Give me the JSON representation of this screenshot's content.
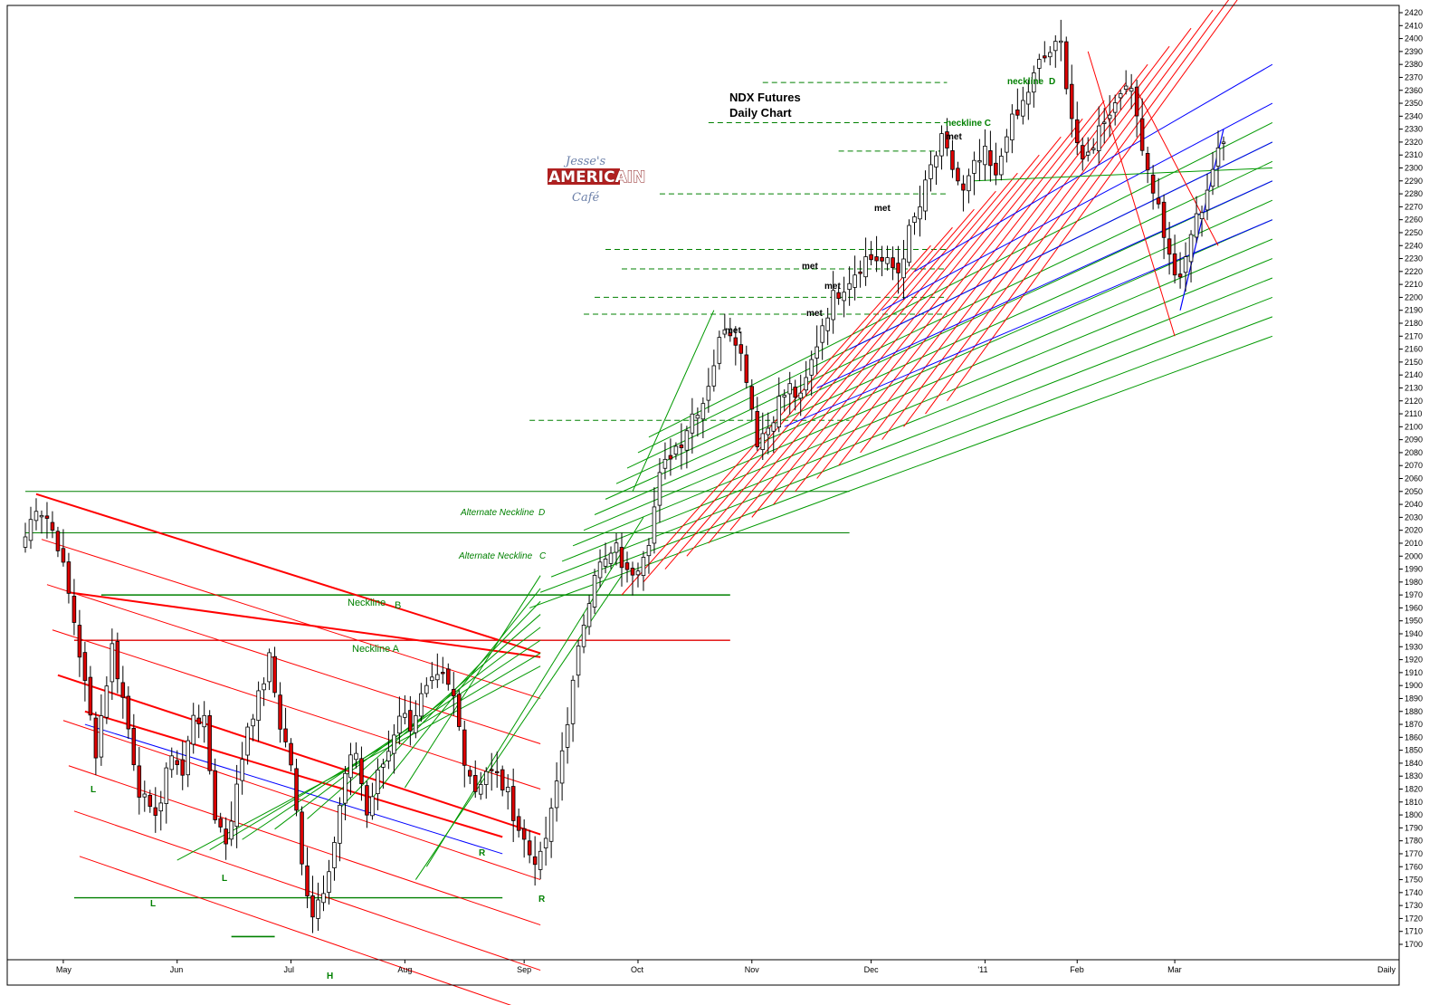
{
  "chart_data": {
    "type": "candlestick",
    "title": "NDX  Futures",
    "subtitle": "Daily Chart",
    "period_label": "Daily",
    "ylim": [
      1690,
      2425
    ],
    "y_ticks": [
      1700,
      1710,
      1720,
      1730,
      1740,
      1750,
      1760,
      1770,
      1780,
      1790,
      1800,
      1810,
      1820,
      1830,
      1840,
      1850,
      1860,
      1870,
      1880,
      1890,
      1900,
      1910,
      1920,
      1930,
      1940,
      1950,
      1960,
      1970,
      1980,
      1990,
      2000,
      2010,
      2020,
      2030,
      2040,
      2050,
      2060,
      2070,
      2080,
      2090,
      2100,
      2110,
      2120,
      2130,
      2140,
      2150,
      2160,
      2170,
      2180,
      2190,
      2200,
      2210,
      2220,
      2230,
      2240,
      2250,
      2260,
      2270,
      2280,
      2290,
      2300,
      2310,
      2320,
      2330,
      2340,
      2350,
      2360,
      2370,
      2380,
      2390,
      2400,
      2410,
      2420
    ],
    "x_range": [
      0,
      231
    ],
    "months": [
      {
        "label": "May",
        "index": 7
      },
      {
        "label": "Jun",
        "index": 28
      },
      {
        "label": "Jul",
        "index": 49
      },
      {
        "label": "Aug",
        "index": 70
      },
      {
        "label": "Sep",
        "index": 92
      },
      {
        "label": "Oct",
        "index": 113
      },
      {
        "label": "Nov",
        "index": 134
      },
      {
        "label": "Dec",
        "index": 156
      },
      {
        "label": "'11",
        "index": 177
      },
      {
        "label": "Feb",
        "index": 194
      },
      {
        "label": "Mar",
        "index": 212
      }
    ],
    "anchors": [
      [
        0,
        2015
      ],
      [
        2,
        2040
      ],
      [
        4,
        2030
      ],
      [
        6,
        2010
      ],
      [
        9,
        1950
      ],
      [
        11,
        1900
      ],
      [
        13,
        1850
      ],
      [
        16,
        1930
      ],
      [
        18,
        1890
      ],
      [
        21,
        1820
      ],
      [
        23,
        1800
      ],
      [
        25,
        1810
      ],
      [
        27,
        1850
      ],
      [
        29,
        1830
      ],
      [
        31,
        1880
      ],
      [
        33,
        1870
      ],
      [
        35,
        1800
      ],
      [
        37,
        1780
      ],
      [
        39,
        1820
      ],
      [
        41,
        1870
      ],
      [
        43,
        1890
      ],
      [
        45,
        1920
      ],
      [
        47,
        1870
      ],
      [
        49,
        1840
      ],
      [
        51,
        1760
      ],
      [
        53,
        1725
      ],
      [
        55,
        1745
      ],
      [
        57,
        1780
      ],
      [
        59,
        1830
      ],
      [
        61,
        1850
      ],
      [
        63,
        1800
      ],
      [
        65,
        1830
      ],
      [
        67,
        1850
      ],
      [
        69,
        1880
      ],
      [
        71,
        1870
      ],
      [
        73,
        1890
      ],
      [
        75,
        1900
      ],
      [
        77,
        1905
      ],
      [
        79,
        1890
      ],
      [
        81,
        1845
      ],
      [
        83,
        1820
      ],
      [
        85,
        1835
      ],
      [
        87,
        1830
      ],
      [
        89,
        1815
      ],
      [
        91,
        1790
      ],
      [
        93,
        1770
      ],
      [
        95,
        1765
      ],
      [
        97,
        1800
      ],
      [
        99,
        1850
      ],
      [
        101,
        1900
      ],
      [
        103,
        1950
      ],
      [
        105,
        1990
      ],
      [
        107,
        1995
      ],
      [
        109,
        2005
      ],
      [
        111,
        1985
      ],
      [
        113,
        1995
      ],
      [
        115,
        2015
      ],
      [
        117,
        2060
      ],
      [
        119,
        2080
      ],
      [
        121,
        2090
      ],
      [
        123,
        2110
      ],
      [
        125,
        2120
      ],
      [
        127,
        2150
      ],
      [
        129,
        2180
      ],
      [
        131,
        2170
      ],
      [
        133,
        2140
      ],
      [
        135,
        2090
      ],
      [
        137,
        2100
      ],
      [
        139,
        2120
      ],
      [
        141,
        2130
      ],
      [
        143,
        2120
      ],
      [
        145,
        2150
      ],
      [
        147,
        2180
      ],
      [
        149,
        2200
      ],
      [
        151,
        2210
      ],
      [
        153,
        2220
      ],
      [
        155,
        2230
      ],
      [
        157,
        2230
      ],
      [
        159,
        2225
      ],
      [
        161,
        2220
      ],
      [
        163,
        2250
      ],
      [
        165,
        2270
      ],
      [
        167,
        2300
      ],
      [
        169,
        2320
      ],
      [
        171,
        2300
      ],
      [
        173,
        2280
      ],
      [
        175,
        2300
      ],
      [
        177,
        2310
      ],
      [
        179,
        2290
      ],
      [
        181,
        2330
      ],
      [
        183,
        2340
      ],
      [
        185,
        2360
      ],
      [
        187,
        2380
      ],
      [
        189,
        2390
      ],
      [
        191,
        2395
      ],
      [
        193,
        2340
      ],
      [
        195,
        2300
      ],
      [
        197,
        2320
      ],
      [
        199,
        2340
      ],
      [
        201,
        2350
      ],
      [
        203,
        2370
      ],
      [
        205,
        2340
      ],
      [
        207,
        2300
      ],
      [
        209,
        2270
      ],
      [
        211,
        2230
      ],
      [
        213,
        2210
      ],
      [
        215,
        2250
      ],
      [
        217,
        2270
      ],
      [
        219,
        2300
      ],
      [
        221,
        2320
      ]
    ],
    "annotations": {
      "neckline_a": "Neckline   A",
      "neckline_b": "Neckline",
      "neckline_b_letter": "B",
      "alt_neckline_c": "Alternate Neckline",
      "alt_neckline_c_letter": "C",
      "alt_neckline_d": "Alternate Neckline",
      "alt_neckline_d_letter": "D",
      "neckline_c": "neckline  C",
      "neckline_d": "neckline",
      "neckline_d_letter": "D",
      "met": "met",
      "L": "L",
      "H": "H",
      "R": "R"
    },
    "levels": [
      {
        "name": "neckline-a",
        "value": 1935,
        "color": "#e00000"
      },
      {
        "name": "neckline-b",
        "value": 1970,
        "color": "#008000"
      },
      {
        "name": "alt-neckline-c",
        "value": 2018,
        "color": "#008000"
      },
      {
        "name": "alt-neckline-d",
        "value": 2050,
        "color": "#008000"
      },
      {
        "name": "support-base",
        "value": 1736,
        "color": "#008000"
      }
    ],
    "logo": {
      "line1": "Jesse's",
      "line2": "AMERICAIN",
      "line3": "Café"
    },
    "colors": {
      "up": "#ffffff",
      "down": "#dd0000",
      "red_line": "#ff0000",
      "green_line": "#009900",
      "blue_line": "#0000ff",
      "axis": "#000000"
    }
  }
}
